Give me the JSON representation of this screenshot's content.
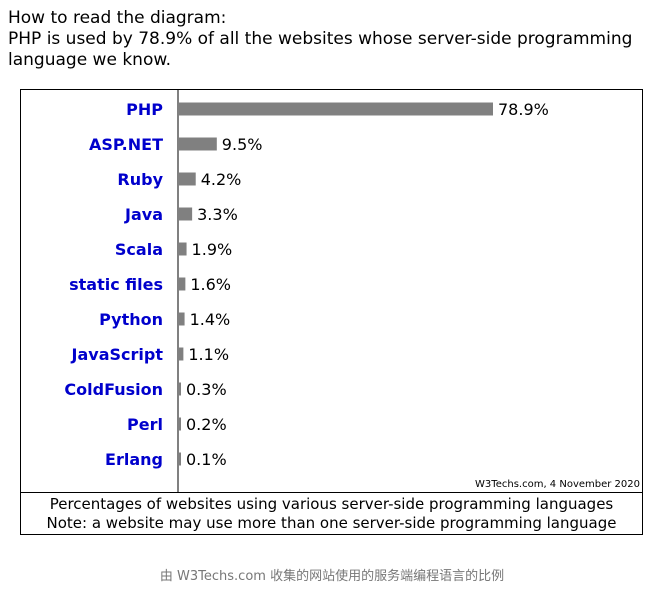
{
  "intro": {
    "line1": "How to read the diagram:",
    "line2": "PHP is used by 78.9% of all the websites whose server-side programming",
    "line3": "language we know."
  },
  "chart_data": {
    "type": "bar",
    "orientation": "horizontal",
    "categories": [
      "PHP",
      "ASP.NET",
      "Ruby",
      "Java",
      "Scala",
      "static files",
      "Python",
      "JavaScript",
      "ColdFusion",
      "Perl",
      "Erlang"
    ],
    "values": [
      78.9,
      9.5,
      4.2,
      3.3,
      1.9,
      1.6,
      1.4,
      1.1,
      0.3,
      0.2,
      0.1
    ],
    "value_labels": [
      "78.9%",
      "9.5%",
      "4.2%",
      "3.3%",
      "1.9%",
      "1.6%",
      "1.4%",
      "1.1%",
      "0.3%",
      "0.2%",
      "0.1%"
    ],
    "unit": "%",
    "xlim": [
      0,
      100
    ],
    "grid": false,
    "legend": "none",
    "colors": {
      "bar": "#808080",
      "label": "#0000cc",
      "axis": "#000000"
    },
    "source": "W3Techs.com, 4 November 2020",
    "footnotes": [
      "Percentages of websites using various server-side programming languages",
      "Note: a website may use more than one server-side programming language"
    ]
  },
  "caption": "由 W3Techs.com 收集的网站使用的服务端编程语言的比例"
}
